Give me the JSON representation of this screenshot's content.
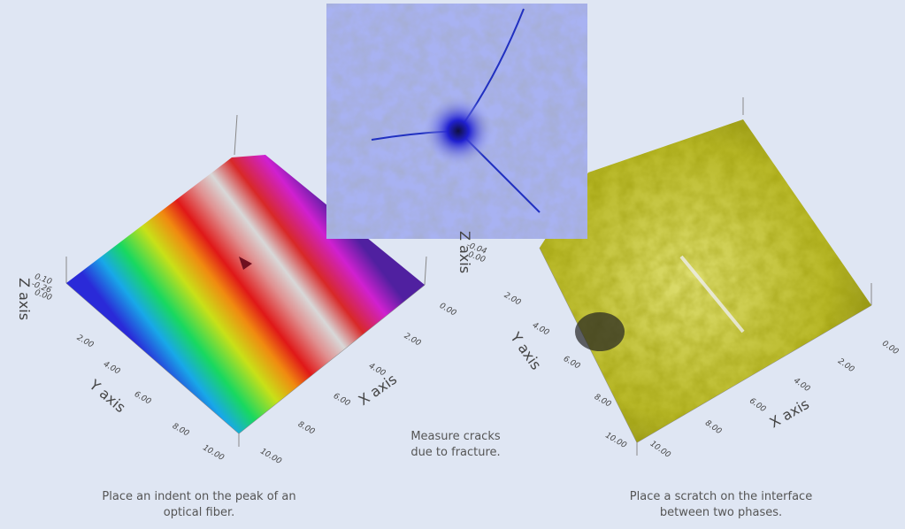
{
  "panels": [
    {
      "caption": [
        "Place an indent on the peak of an",
        "optical fiber."
      ],
      "x_axis_label": "X axis",
      "y_axis_label": "Y axis",
      "z_axis_label": "Z axis",
      "x_ticks": [
        "0.00",
        "2.00",
        "4.00",
        "6.00",
        "8.00",
        "10.00"
      ],
      "y_ticks": [
        "2.00",
        "4.00",
        "6.00",
        "8.00",
        "10.00"
      ],
      "z_ticks": [
        "0.10",
        "-0.26",
        "0.00"
      ]
    },
    {
      "caption": [
        "Measure cracks",
        "due to fracture."
      ]
    },
    {
      "caption": [
        "Place a scratch on the interface",
        "between two phases."
      ],
      "x_axis_label": "X axis",
      "y_axis_label": "Y axis",
      "z_axis_label": "Z axis",
      "x_ticks": [
        "0.00",
        "2.00",
        "4.00",
        "6.00",
        "8.00",
        "10.00"
      ],
      "y_ticks": [
        "2.00",
        "4.00",
        "6.00",
        "8.00",
        "10.00"
      ],
      "z_ticks": [
        "-0.04",
        "0.00"
      ]
    }
  ]
}
